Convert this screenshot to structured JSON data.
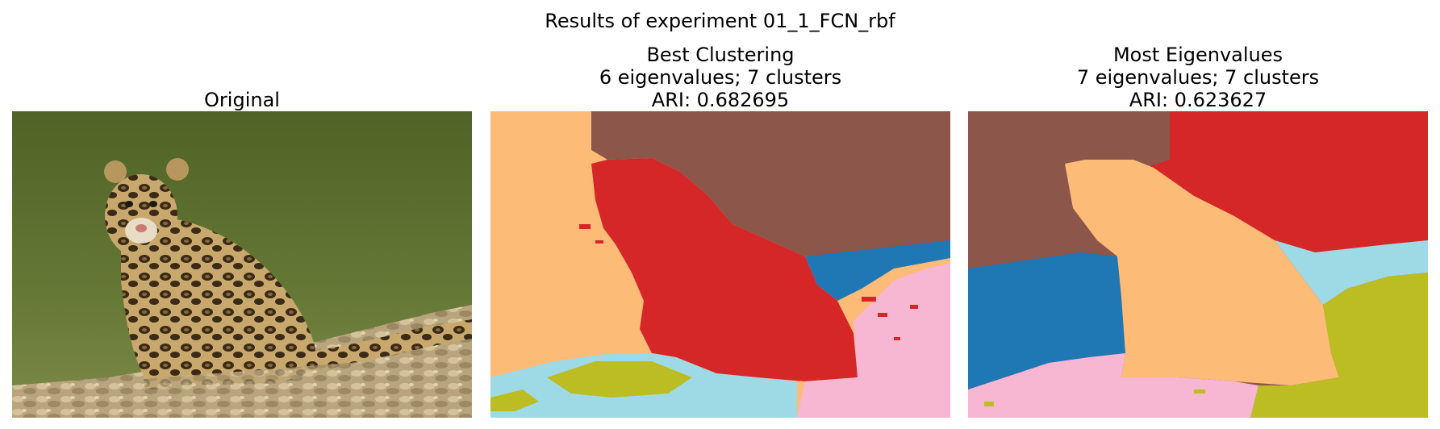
{
  "figure": {
    "suptitle": "Results of experiment 01_1_FCN_rbf"
  },
  "panels": [
    {
      "title_lines": [
        "Original"
      ]
    },
    {
      "title_lines": [
        "Best Clustering",
        "6 eigenvalues; 7 clusters",
        "ARI: 0.682695"
      ]
    },
    {
      "title_lines": [
        "Most Eigenvalues",
        "7 eigenvalues; 7 clusters",
        "ARI: 0.623627"
      ]
    }
  ],
  "colors": {
    "orange": "#fdbb78",
    "brown": "#8c564b",
    "red": "#d62728",
    "blue": "#1f77b4",
    "pink": "#f7b6d2",
    "cyan": "#9edae5",
    "olive": "#bcbd22",
    "water": "#5b6e2e",
    "rocks": "#b8a27a"
  }
}
